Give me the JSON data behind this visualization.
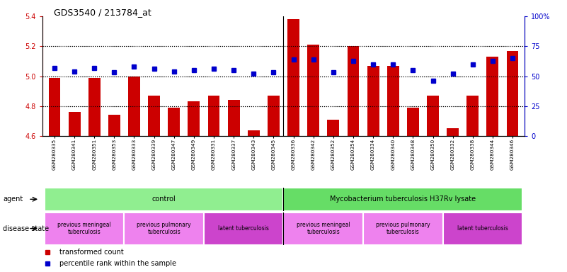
{
  "title": "GDS3540 / 213784_at",
  "samples": [
    "GSM280335",
    "GSM280341",
    "GSM280351",
    "GSM280353",
    "GSM280333",
    "GSM280339",
    "GSM280347",
    "GSM280349",
    "GSM280331",
    "GSM280337",
    "GSM280343",
    "GSM280345",
    "GSM280336",
    "GSM280342",
    "GSM280352",
    "GSM280354",
    "GSM280334",
    "GSM280340",
    "GSM280348",
    "GSM280350",
    "GSM280332",
    "GSM280338",
    "GSM280344",
    "GSM280346"
  ],
  "transformed_count": [
    4.99,
    4.76,
    4.99,
    4.74,
    5.0,
    4.87,
    4.79,
    4.83,
    4.87,
    4.84,
    4.64,
    4.87,
    5.38,
    5.21,
    4.71,
    5.2,
    5.07,
    5.07,
    4.79,
    4.87,
    4.65,
    4.87,
    5.13,
    5.17
  ],
  "percentile_rank": [
    57,
    54,
    57,
    53,
    58,
    56,
    54,
    55,
    56,
    55,
    52,
    53,
    64,
    64,
    53,
    63,
    60,
    60,
    55,
    46,
    52,
    60,
    63,
    65
  ],
  "ylim_left": [
    4.6,
    5.4
  ],
  "ylim_right": [
    0,
    100
  ],
  "yticks_left": [
    4.6,
    4.8,
    5.0,
    5.2,
    5.4
  ],
  "yticks_right": [
    0,
    25,
    50,
    75,
    100
  ],
  "ytick_right_labels": [
    "0",
    "25",
    "50",
    "75",
    "100%"
  ],
  "bar_color": "#cc0000",
  "dot_color": "#0000cc",
  "agent_groups": [
    {
      "label": "control",
      "start": 0,
      "end": 11,
      "color": "#90ee90"
    },
    {
      "label": "Mycobacterium tuberculosis H37Rv lysate",
      "start": 12,
      "end": 23,
      "color": "#66dd66"
    }
  ],
  "disease_groups": [
    {
      "label": "previous meningeal\ntuberculosis",
      "start": 0,
      "end": 3,
      "color": "#ee82ee"
    },
    {
      "label": "previous pulmonary\ntuberculosis",
      "start": 4,
      "end": 7,
      "color": "#ee82ee"
    },
    {
      "label": "latent tuberculosis",
      "start": 8,
      "end": 11,
      "color": "#cc44cc"
    },
    {
      "label": "previous meningeal\ntuberculosis",
      "start": 12,
      "end": 15,
      "color": "#ee82ee"
    },
    {
      "label": "previous pulmonary\ntuberculosis",
      "start": 16,
      "end": 19,
      "color": "#ee82ee"
    },
    {
      "label": "latent tuberculosis",
      "start": 20,
      "end": 23,
      "color": "#cc44cc"
    }
  ],
  "bg_color": "#f0f0f0",
  "plot_bg": "#ffffff"
}
